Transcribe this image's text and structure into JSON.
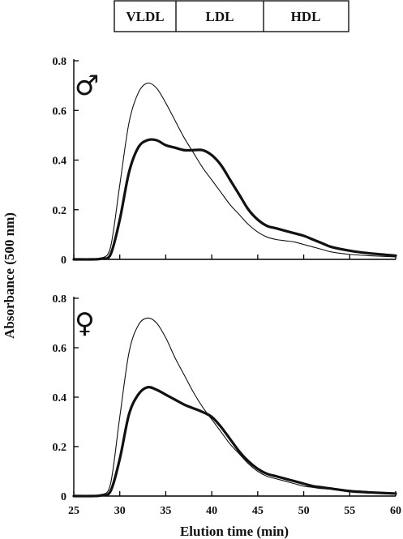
{
  "chart_data": [
    {
      "type": "line",
      "panel_symbol": "♂",
      "xlim": [
        25,
        60
      ],
      "ylim": [
        0,
        0.8
      ],
      "xticks": [
        25,
        30,
        35,
        40,
        45,
        50,
        55,
        60
      ],
      "yticks": [
        "0",
        "0.2",
        "0.4",
        "0.6",
        "0.8"
      ],
      "series": [
        {
          "style": "thin",
          "x": [
            25,
            27,
            28,
            29,
            30,
            31,
            32,
            33,
            34,
            35,
            36,
            37,
            38,
            39,
            40,
            41,
            42,
            43,
            44,
            45,
            46,
            47,
            48,
            49,
            50,
            51,
            52,
            53,
            55,
            57,
            60
          ],
          "y": [
            0.0,
            0.0,
            0.005,
            0.05,
            0.3,
            0.55,
            0.67,
            0.71,
            0.69,
            0.63,
            0.56,
            0.49,
            0.43,
            0.37,
            0.32,
            0.27,
            0.22,
            0.18,
            0.14,
            0.11,
            0.09,
            0.08,
            0.075,
            0.07,
            0.06,
            0.05,
            0.04,
            0.03,
            0.02,
            0.015,
            0.01
          ]
        },
        {
          "style": "thick",
          "x": [
            25,
            27,
            28,
            29,
            30,
            31,
            32,
            33,
            34,
            35,
            36,
            37,
            38,
            39,
            40,
            41,
            42,
            43,
            44,
            45,
            46,
            47,
            48,
            49,
            50,
            51,
            52,
            53,
            55,
            57,
            60
          ],
          "y": [
            0.0,
            0.0,
            0.003,
            0.02,
            0.16,
            0.35,
            0.45,
            0.48,
            0.48,
            0.46,
            0.45,
            0.44,
            0.44,
            0.44,
            0.42,
            0.38,
            0.32,
            0.26,
            0.2,
            0.16,
            0.135,
            0.125,
            0.115,
            0.105,
            0.095,
            0.08,
            0.065,
            0.05,
            0.035,
            0.025,
            0.015
          ]
        }
      ]
    },
    {
      "type": "line",
      "panel_symbol": "♀",
      "xlim": [
        25,
        60
      ],
      "ylim": [
        0,
        0.8
      ],
      "xticks": [
        25,
        30,
        35,
        40,
        45,
        50,
        55,
        60
      ],
      "yticks": [
        "0",
        "0.2",
        "0.4",
        "0.6",
        "0.8"
      ],
      "series": [
        {
          "style": "thin",
          "x": [
            25,
            27,
            28,
            29,
            30,
            31,
            32,
            33,
            34,
            35,
            36,
            37,
            38,
            39,
            40,
            41,
            42,
            43,
            44,
            45,
            46,
            47,
            48,
            49,
            50,
            51,
            52,
            53,
            55,
            57,
            60
          ],
          "y": [
            0.0,
            0.0,
            0.005,
            0.05,
            0.32,
            0.58,
            0.69,
            0.72,
            0.7,
            0.64,
            0.56,
            0.49,
            0.42,
            0.36,
            0.31,
            0.26,
            0.21,
            0.17,
            0.13,
            0.1,
            0.08,
            0.07,
            0.06,
            0.05,
            0.04,
            0.035,
            0.03,
            0.028,
            0.022,
            0.018,
            0.01
          ]
        },
        {
          "style": "thick",
          "x": [
            25,
            27,
            28,
            29,
            30,
            31,
            32,
            33,
            34,
            35,
            36,
            37,
            38,
            39,
            40,
            41,
            42,
            43,
            44,
            45,
            46,
            47,
            48,
            49,
            50,
            51,
            52,
            53,
            55,
            57,
            60
          ],
          "y": [
            0.0,
            0.0,
            0.003,
            0.02,
            0.15,
            0.33,
            0.41,
            0.44,
            0.43,
            0.41,
            0.39,
            0.37,
            0.355,
            0.34,
            0.32,
            0.28,
            0.23,
            0.18,
            0.14,
            0.11,
            0.09,
            0.08,
            0.07,
            0.06,
            0.05,
            0.04,
            0.035,
            0.03,
            0.02,
            0.015,
            0.01
          ]
        }
      ]
    }
  ],
  "figure": {
    "xlabel": "Elution time (min)",
    "ylabel": "Absorbance (500 nm)",
    "bands": [
      "VLDL",
      "LDL",
      "HDL"
    ]
  },
  "colors": {
    "line": "#111111",
    "axis": "#000000"
  }
}
